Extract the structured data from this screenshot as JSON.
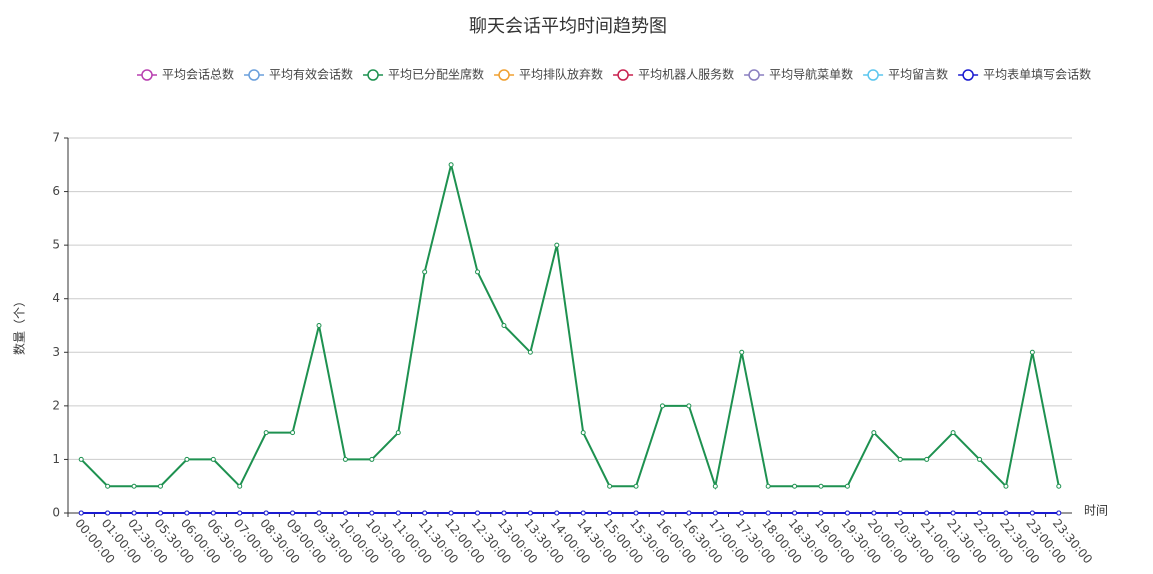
{
  "chart_data": {
    "type": "line",
    "title": "聊天会话平均时间趋势图",
    "x_label": "时间",
    "y_label": "数量（个）",
    "categories": [
      "00:00:00",
      "01:00:00",
      "02:30:00",
      "05:30:00",
      "06:00:00",
      "06:30:00",
      "07:00:00",
      "08:30:00",
      "09:00:00",
      "09:30:00",
      "10:00:00",
      "10:30:00",
      "11:00:00",
      "11:30:00",
      "12:00:00",
      "12:30:00",
      "13:00:00",
      "13:30:00",
      "14:00:00",
      "14:30:00",
      "15:00:00",
      "15:30:00",
      "16:00:00",
      "16:30:00",
      "17:00:00",
      "17:30:00",
      "18:00:00",
      "18:30:00",
      "19:00:00",
      "19:30:00",
      "20:00:00",
      "20:30:00",
      "21:00:00",
      "21:30:00",
      "22:00:00",
      "22:30:00",
      "23:00:00",
      "23:30:00"
    ],
    "series": [
      {
        "name": "平均会话总数",
        "color": "#b83fb0",
        "values": [
          0,
          0,
          0,
          0,
          0,
          0,
          0,
          0,
          0,
          0,
          0,
          0,
          0,
          0,
          0,
          0,
          0,
          0,
          0,
          0,
          0,
          0,
          0,
          0,
          0,
          0,
          0,
          0,
          0,
          0,
          0,
          0,
          0,
          0,
          0,
          0,
          0,
          0
        ]
      },
      {
        "name": "平均有效会话数",
        "color": "#6a9fdc",
        "values": [
          0,
          0,
          0,
          0,
          0,
          0,
          0,
          0,
          0,
          0,
          0,
          0,
          0,
          0,
          0,
          0,
          0,
          0,
          0,
          0,
          0,
          0,
          0,
          0,
          0,
          0,
          0,
          0,
          0,
          0,
          0,
          0,
          0,
          0,
          0,
          0,
          0,
          0
        ]
      },
      {
        "name": "平均已分配坐席数",
        "color": "#1e9150",
        "values": [
          1,
          0.5,
          0.5,
          0.5,
          1,
          1,
          0.5,
          1.5,
          1.5,
          3.5,
          1,
          1,
          1.5,
          4.5,
          6.5,
          4.5,
          3.5,
          3,
          5,
          1.5,
          0.5,
          0.5,
          2,
          2,
          0.5,
          3,
          0.5,
          0.5,
          0.5,
          0.5,
          1.5,
          1,
          1,
          1.5,
          1,
          0.5,
          3,
          0.5
        ]
      },
      {
        "name": "平均排队放弃数",
        "color": "#f0a030",
        "values": [
          0,
          0,
          0,
          0,
          0,
          0,
          0,
          0,
          0,
          0,
          0,
          0,
          0,
          0,
          0,
          0,
          0,
          0,
          0,
          0,
          0,
          0,
          0,
          0,
          0,
          0,
          0,
          0,
          0,
          0,
          0,
          0,
          0,
          0,
          0,
          0,
          0,
          0
        ]
      },
      {
        "name": "平均机器人服务数",
        "color": "#c8204f",
        "values": [
          0,
          0,
          0,
          0,
          0,
          0,
          0,
          0,
          0,
          0,
          0,
          0,
          0,
          0,
          0,
          0,
          0,
          0,
          0,
          0,
          0,
          0,
          0,
          0,
          0,
          0,
          0,
          0,
          0,
          0,
          0,
          0,
          0,
          0,
          0,
          0,
          0,
          0
        ]
      },
      {
        "name": "平均导航菜单数",
        "color": "#8a7fc0",
        "values": [
          0,
          0,
          0,
          0,
          0,
          0,
          0,
          0,
          0,
          0,
          0,
          0,
          0,
          0,
          0,
          0,
          0,
          0,
          0,
          0,
          0,
          0,
          0,
          0,
          0,
          0,
          0,
          0,
          0,
          0,
          0,
          0,
          0,
          0,
          0,
          0,
          0,
          0
        ]
      },
      {
        "name": "平均留言数",
        "color": "#5cc6ee",
        "values": [
          0,
          0,
          0,
          0,
          0,
          0,
          0,
          0,
          0,
          0,
          0,
          0,
          0,
          0,
          0,
          0,
          0,
          0,
          0,
          0,
          0,
          0,
          0,
          0,
          0,
          0,
          0,
          0,
          0,
          0,
          0,
          0,
          0,
          0,
          0,
          0,
          0,
          0
        ]
      },
      {
        "name": "平均表单填写会话数",
        "color": "#1a1ad0",
        "values": [
          0,
          0,
          0,
          0,
          0,
          0,
          0,
          0,
          0,
          0,
          0,
          0,
          0,
          0,
          0,
          0,
          0,
          0,
          0,
          0,
          0,
          0,
          0,
          0,
          0,
          0,
          0,
          0,
          0,
          0,
          0,
          0,
          0,
          0,
          0,
          0,
          0,
          0
        ]
      }
    ],
    "ylim": [
      0,
      7
    ],
    "yticks": [
      0,
      1,
      2,
      3,
      4,
      5,
      6,
      7
    ],
    "grid": true
  }
}
